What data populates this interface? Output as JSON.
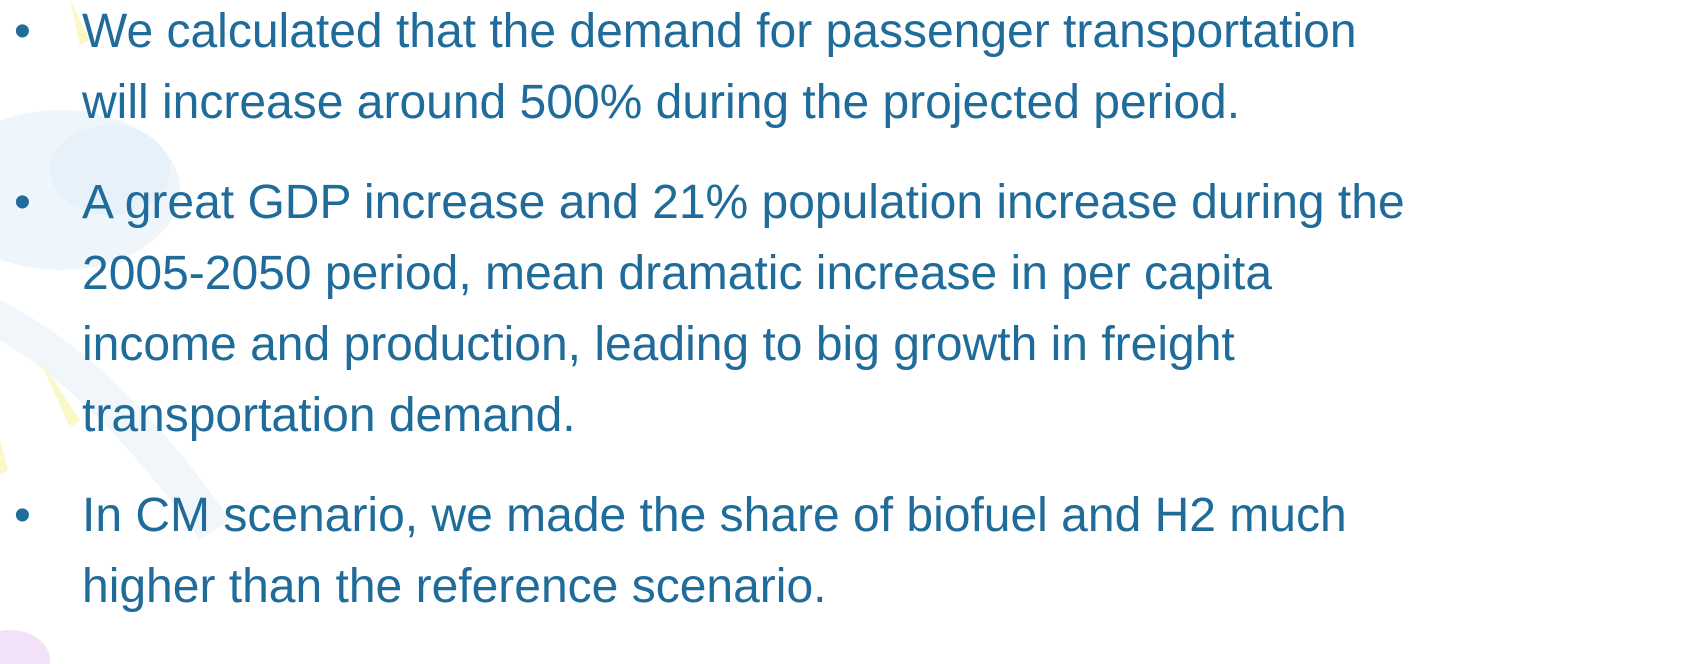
{
  "bullets": [
    [
      "We calculated that the demand for passenger transportation",
      "will increase around 500% during the projected period."
    ],
    [
      "A great GDP increase and 21% population increase during the",
      "2005-2050 period, mean dramatic increase in per capita",
      "income and production, leading to big growth in freight",
      "transportation demand."
    ],
    [
      "In CM scenario, we made the share of biofuel and H2 much",
      "higher than the reference scenario."
    ]
  ]
}
